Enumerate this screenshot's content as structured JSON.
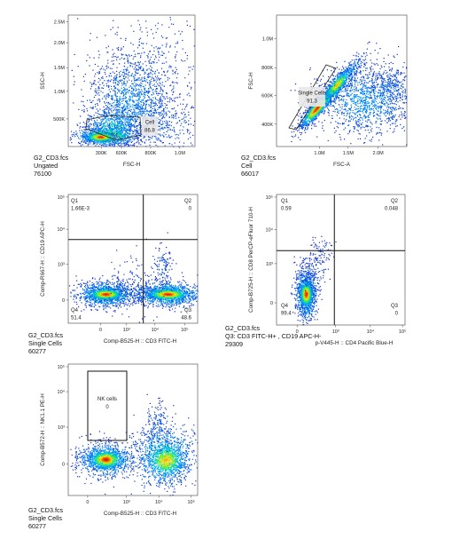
{
  "chart_data": [
    {
      "type": "scatter",
      "density": true,
      "xlabel": "FSC-H",
      "ylabel": "SSC-H",
      "x_ticks": [
        "300K",
        "600K",
        "800K",
        "1.0M"
      ],
      "y_ticks": [
        "500K",
        "1.0M",
        "1.5M",
        "2.0M",
        "2.5M"
      ],
      "xlim": [
        0,
        1150000
      ],
      "ylim": [
        200000,
        2650000
      ],
      "gates": [
        {
          "name": "Cell",
          "value": "86.8",
          "shape": "polygon"
        }
      ],
      "caption": [
        "G2_CD3.fcs",
        "Ungated",
        "76100"
      ]
    },
    {
      "type": "scatter",
      "density": true,
      "xlabel": "FSC-A",
      "ylabel": "FSC-H",
      "x_ticks": [
        "1.0M",
        "1.5M",
        "2.0M"
      ],
      "y_ticks": [
        "400K",
        "600K",
        "800K",
        "1.0M"
      ],
      "xlim": [
        400000,
        2750000
      ],
      "ylim": [
        250000,
        1150000
      ],
      "gates": [
        {
          "name": "Single Cells",
          "value": "91.3",
          "shape": "polygon"
        }
      ],
      "caption": [
        "G2_CD3.fcs",
        "Cell",
        "66017"
      ]
    },
    {
      "type": "scatter",
      "density": true,
      "xlabel": "Comp-B525-H :: CD3 FITC-H",
      "ylabel": "Comp-R667-H :: CD19 APC-H",
      "x_ticks": [
        "0",
        "10³",
        "10⁴",
        "10⁵"
      ],
      "y_ticks": [
        "0",
        "10³",
        "10⁴",
        "10⁵"
      ],
      "quadrants": [
        {
          "name": "Q1",
          "value": "1.66E-3"
        },
        {
          "name": "Q2",
          "value": "0"
        },
        {
          "name": "Q3",
          "value": "48.6"
        },
        {
          "name": "Q4",
          "value": "51.4"
        }
      ],
      "caption": [
        "G2_CD3.fcs",
        "Single Cells",
        "60277"
      ]
    },
    {
      "type": "scatter",
      "density": true,
      "xlabel": "p-V445-H :: CD4 Pacific Blue-H",
      "ylabel": "Comp-B725-H :: CD8 PerCP-eFluor 710-H",
      "x_ticks": [
        "0",
        "10³",
        "10⁴",
        "10⁵"
      ],
      "y_ticks": [
        "0",
        "10³",
        "10⁴",
        "10⁵"
      ],
      "quadrants": [
        {
          "name": "Q1",
          "value": "0.59"
        },
        {
          "name": "Q2",
          "value": "0.048"
        },
        {
          "name": "Q3",
          "value": "0"
        },
        {
          "name": "Q4",
          "value": "99.4"
        }
      ],
      "caption": [
        "G2_CD3.fcs",
        "Q3: CD3 FITC-H+ , CD19 APC-H-",
        "29309"
      ]
    },
    {
      "type": "scatter",
      "density": true,
      "xlabel": "Comp-B525-H :: CD3 FITC-H",
      "ylabel": "Comp-B572-H :: NK1.1 PE-H",
      "x_ticks": [
        "0",
        "10³",
        "10⁴",
        "10⁵"
      ],
      "y_ticks": [
        "0",
        "10³",
        "10⁴",
        "10⁵"
      ],
      "gates": [
        {
          "name": "NK cells",
          "value": "0",
          "shape": "rectangle"
        }
      ],
      "caption": [
        "G2_CD3.fcs",
        "Single Cells",
        "60277"
      ]
    }
  ]
}
